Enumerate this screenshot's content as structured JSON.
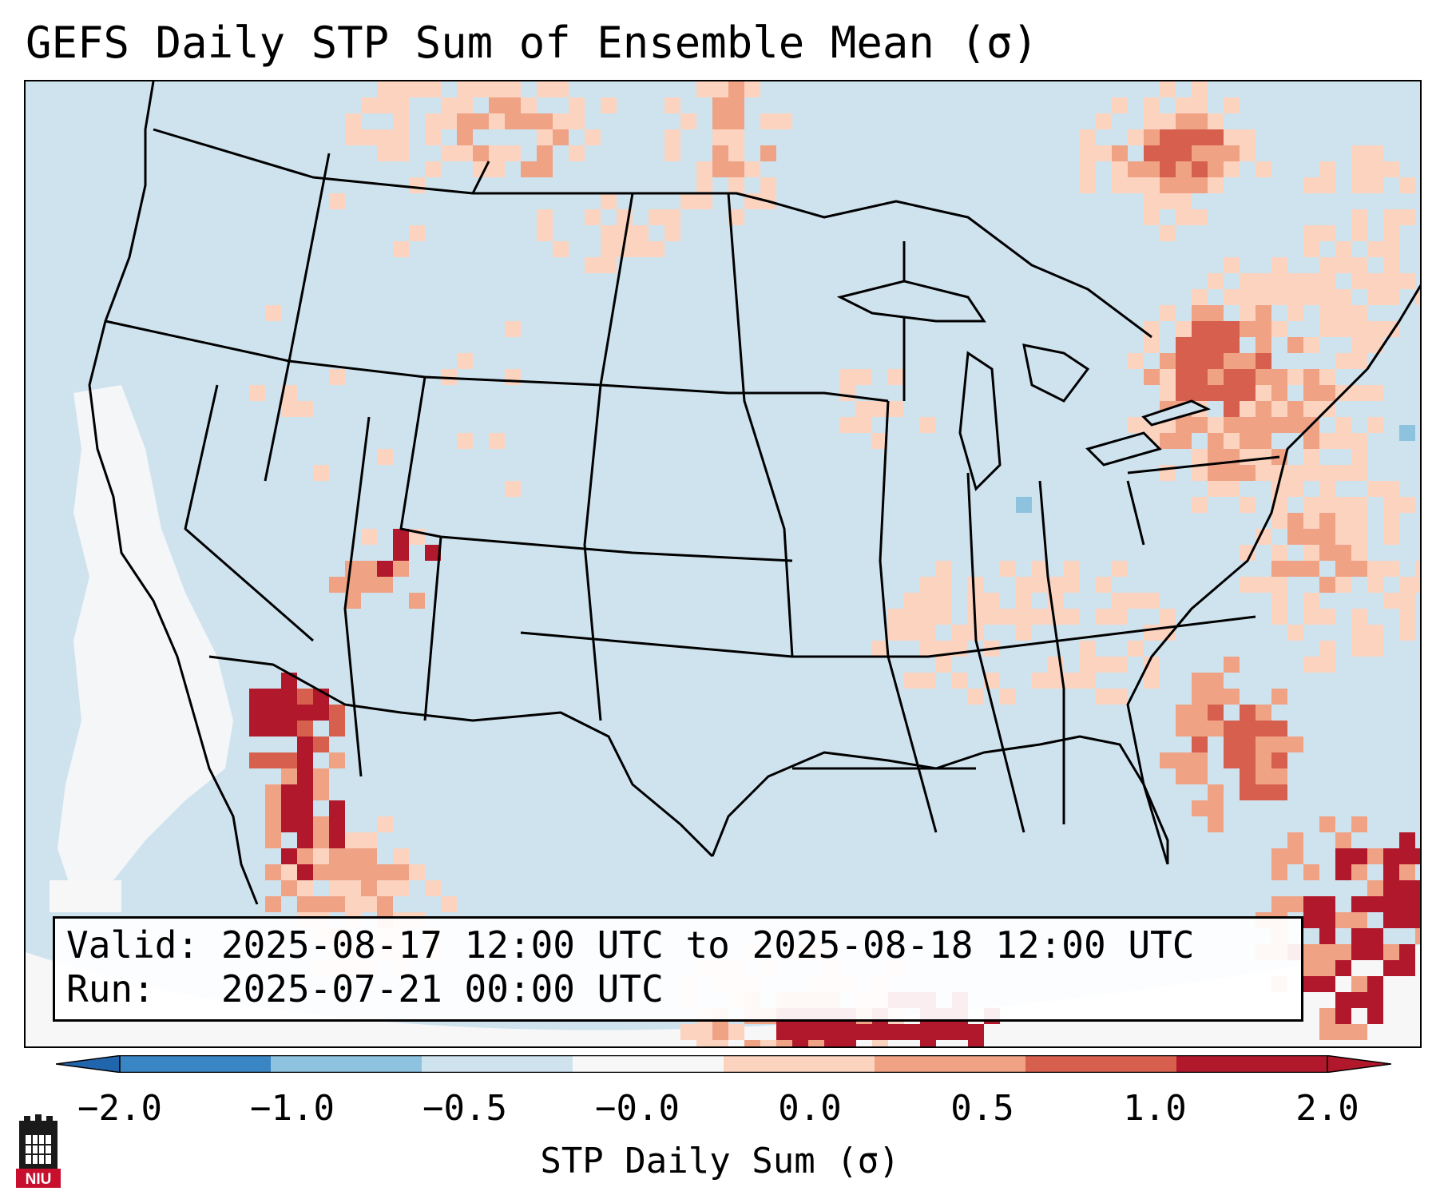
{
  "title": "GEFS Daily STP Sum of Ensemble Mean (σ)",
  "info": {
    "valid_label": "Valid:",
    "valid_value": "2025-08-17 12:00 UTC to 2025-08-18 12:00 UTC",
    "run_label": "Run:",
    "run_value": "2025-07-21 00:00 UTC"
  },
  "colorbar": {
    "title": "STP Daily Sum (σ)",
    "tick_labels": [
      "−2.0",
      "−1.0",
      "−0.5",
      "−0.0",
      "0.0",
      "0.5",
      "1.0",
      "2.0"
    ],
    "bins": [
      {
        "range": "-2.0 to -1.0",
        "color": "#3a85c4"
      },
      {
        "range": "-1.0 to -0.5",
        "color": "#8ec3e0"
      },
      {
        "range": "-0.5 to -0.0",
        "color": "#cfe3ef"
      },
      {
        "range": "-0.0 to 0.0",
        "color": "#f7f7f7"
      },
      {
        "range": "0.0 to 0.5",
        "color": "#fbd3bf"
      },
      {
        "range": "0.5 to 1.0",
        "color": "#f0a285"
      },
      {
        "range": "1.0 to 2.0",
        "color": "#d6604d"
      },
      {
        "range": "over 2.0",
        "color": "#b2182b"
      }
    ],
    "extend_low_color": "#2166ac",
    "extend_high_color": "#b2182b"
  },
  "map": {
    "projection": "CONUS (Lambert-style)",
    "background_color": "#cfe3ef",
    "features": [
      "coastlines",
      "country borders",
      "state borders"
    ],
    "hotspots": [
      {
        "region": "Arizona / Gulf of California",
        "level": "over 2.0"
      },
      {
        "region": "Pennsylvania / Mid-Atlantic",
        "level": "1.0 to 2.0"
      },
      {
        "region": "Southern Ontario / Quebec",
        "level": "1.0 to 2.0"
      },
      {
        "region": "Western Gulf of Mexico",
        "level": "over 2.0"
      },
      {
        "region": "Bahamas",
        "level": "over 2.0"
      },
      {
        "region": "Pacific offshore California",
        "level": "-0.0 to 0.0"
      }
    ]
  },
  "logo": {
    "text": "NIU",
    "color": "#c8102e"
  }
}
